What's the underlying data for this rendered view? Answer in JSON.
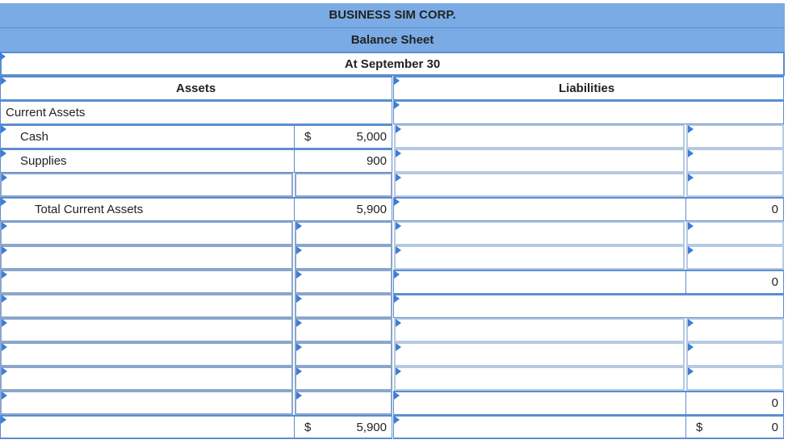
{
  "header": {
    "company": "BUSINESS SIM CORP.",
    "statement": "Balance Sheet",
    "date": "At September 30"
  },
  "columns": {
    "assets": "Assets",
    "liabilities": "Liabilities"
  },
  "assets": {
    "section": "Current Assets",
    "cash_label": "Cash",
    "cash_currency": "$",
    "cash_value": "5,000",
    "supplies_label": "Supplies",
    "supplies_value": "900",
    "total_label": "Total Current Assets",
    "total_value": "5,900",
    "grand_currency": "$",
    "grand_value": "5,900"
  },
  "liabilities": {
    "total_value_1": "0",
    "total_value_2": "0",
    "total_value_3": "0",
    "grand_currency": "$",
    "grand_value": "0"
  }
}
